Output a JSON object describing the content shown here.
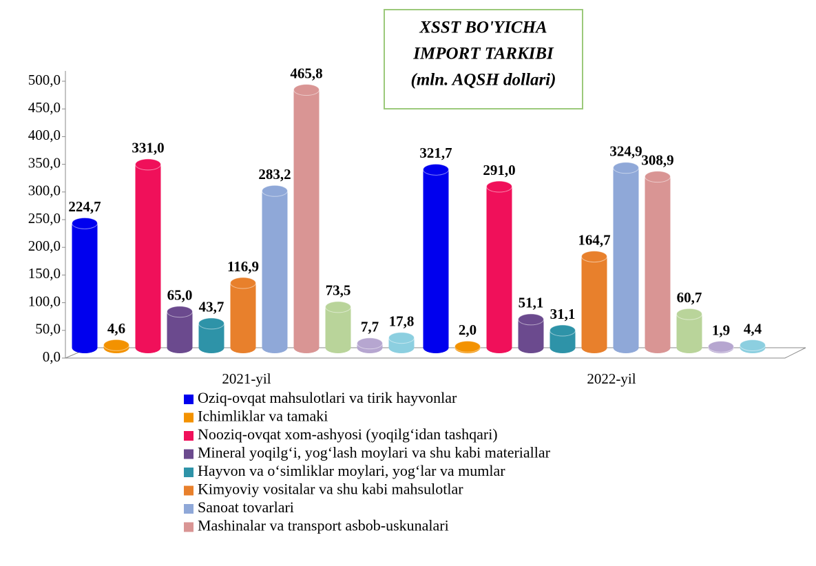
{
  "chart_data": {
    "type": "bar3d",
    "title": [
      "XSST BO'YICHA",
      "IMPORT TARKIBI",
      "(mln. AQSH dollari)"
    ],
    "categories": [
      "2021-yil",
      "2022-yil"
    ],
    "ylim": [
      0,
      500
    ],
    "yticks": [
      {
        "value": 0,
        "label": "0,0"
      },
      {
        "value": 50,
        "label": "50,0"
      },
      {
        "value": 100,
        "label": "100,0"
      },
      {
        "value": 150,
        "label": "150,0"
      },
      {
        "value": 200,
        "label": "200,0"
      },
      {
        "value": 250,
        "label": "250,0"
      },
      {
        "value": 300,
        "label": "300,0"
      },
      {
        "value": 350,
        "label": "350,0"
      },
      {
        "value": 400,
        "label": "400,0"
      },
      {
        "value": 450,
        "label": "450,0"
      },
      {
        "value": 500,
        "label": "500,0"
      }
    ],
    "series": [
      {
        "name": "Oziq-ovqat mahsulotlari va tirik hayvonlar",
        "color": "#0000ee",
        "values": [
          224.7,
          321.7
        ],
        "value_labels": [
          "224,7",
          "321,7"
        ]
      },
      {
        "name": "Ichimliklar va tamaki",
        "color": "#f39200",
        "values": [
          4.6,
          2.0
        ],
        "value_labels": [
          "4,6",
          "2,0"
        ]
      },
      {
        "name": "Nooziq-ovqat xom-ashyosi (yoqilg‘idan tashqari)",
        "color": "#f0105a",
        "values": [
          331.0,
          291.0
        ],
        "value_labels": [
          "331,0",
          "291,0"
        ]
      },
      {
        "name": "Mineral yoqilg‘i, yog‘lash moylari va shu kabi materiallar",
        "color": "#6b4a8e",
        "values": [
          65.0,
          51.1
        ],
        "value_labels": [
          "65,0",
          "51,1"
        ]
      },
      {
        "name": "Hayvon va o‘simliklar moylari, yog‘lar va mumlar",
        "color": "#2e93a8",
        "values": [
          43.7,
          31.1
        ],
        "value_labels": [
          "43,7",
          "31,1"
        ]
      },
      {
        "name": "Kimyoviy vositalar va shu kabi mahsulotlar",
        "color": "#e8802c",
        "values": [
          116.9,
          164.7
        ],
        "value_labels": [
          "116,9",
          "164,7"
        ]
      },
      {
        "name": "Sanoat tovarlari",
        "color": "#8fa8d8",
        "values": [
          283.2,
          324.9
        ],
        "value_labels": [
          "283,2",
          "324,9"
        ]
      },
      {
        "name": "Mashinalar va transport asbob-uskunalari",
        "color": "#d99594",
        "values": [
          465.8,
          308.9
        ],
        "value_labels": [
          "465,8",
          "308,9"
        ]
      },
      {
        "color": "#b9d49a",
        "values": [
          73.5,
          60.7
        ],
        "value_labels": [
          "73,5",
          "60,7"
        ]
      },
      {
        "color": "#b6a6d0",
        "values": [
          7.7,
          1.9
        ],
        "value_labels": [
          "7,7",
          "1,9"
        ]
      },
      {
        "color": "#8ccfe0",
        "values": [
          17.8,
          4.4
        ],
        "value_labels": [
          "17,8",
          "4,4"
        ]
      }
    ]
  }
}
